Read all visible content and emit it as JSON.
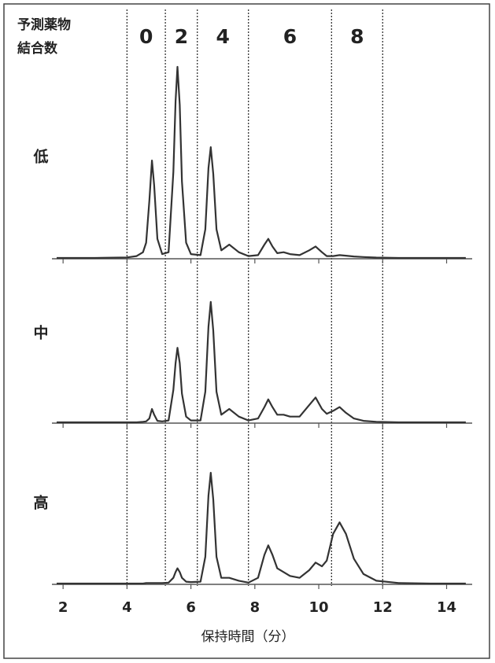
{
  "chart_data": {
    "type": "line",
    "label_title": [
      "予測薬物",
      "結合数"
    ],
    "dar_labels": [
      "0",
      "2",
      "4",
      "6",
      "8"
    ],
    "reference_lines": [
      4.0,
      5.2,
      6.2,
      7.8,
      10.4,
      12.0
    ],
    "xlabel": "保持時間（分）",
    "xlim": [
      1.75,
      14.8
    ],
    "xticks": [
      2,
      4,
      6,
      8,
      10,
      12,
      14
    ],
    "x": [
      1.8,
      3.0,
      4.0,
      4.3,
      4.5,
      4.6,
      4.7,
      4.78,
      4.85,
      4.95,
      5.1,
      5.3,
      5.45,
      5.52,
      5.58,
      5.65,
      5.72,
      5.85,
      6.0,
      6.3,
      6.45,
      6.55,
      6.62,
      6.7,
      6.8,
      6.95,
      7.2,
      7.5,
      7.8,
      8.1,
      8.3,
      8.42,
      8.55,
      8.7,
      8.9,
      9.1,
      9.4,
      9.7,
      9.9,
      10.1,
      10.25,
      10.45,
      10.65,
      10.85,
      11.1,
      11.4,
      11.8,
      12.5,
      13.5,
      14.6
    ],
    "series": [
      {
        "name": "低",
        "color": "#333333",
        "values": [
          0,
          0,
          0.3,
          1,
          3,
          8,
          30,
          51,
          38,
          10,
          2,
          3,
          45,
          82,
          100,
          80,
          40,
          8,
          2,
          1.5,
          15,
          47,
          58,
          44,
          15,
          4,
          7,
          3,
          1,
          1.5,
          7,
          10,
          6,
          2.5,
          3,
          2,
          1.5,
          4,
          6,
          3,
          1,
          1,
          1.5,
          1.2,
          0.8,
          0.5,
          0.2,
          0,
          0,
          0
        ]
      },
      {
        "name": "中",
        "color": "#333333",
        "values": [
          0,
          0,
          0,
          0,
          0.3,
          0.5,
          2,
          7,
          4,
          0.8,
          0.5,
          1,
          17,
          31,
          39,
          31,
          15,
          3,
          1,
          1,
          16,
          50,
          63,
          48,
          16,
          4,
          7,
          3,
          1,
          2,
          8,
          12,
          8,
          4,
          4,
          3,
          3,
          9,
          13,
          7,
          4.5,
          6,
          8,
          5,
          2,
          0.8,
          0.3,
          0,
          0,
          0
        ]
      },
      {
        "name": "高",
        "color": "#333333",
        "values": [
          0,
          0,
          0,
          0,
          0,
          0.3,
          0.3,
          0.3,
          0.3,
          0.3,
          0.3,
          0.5,
          3,
          6,
          8,
          6,
          3,
          1,
          0.8,
          1,
          14,
          46,
          58,
          44,
          14,
          3,
          3,
          1.5,
          0.5,
          3,
          15,
          20,
          15,
          8,
          6,
          4,
          3,
          7,
          11,
          9,
          12,
          26,
          32,
          26,
          13,
          5,
          1.5,
          0.3,
          0,
          0
        ]
      }
    ]
  }
}
